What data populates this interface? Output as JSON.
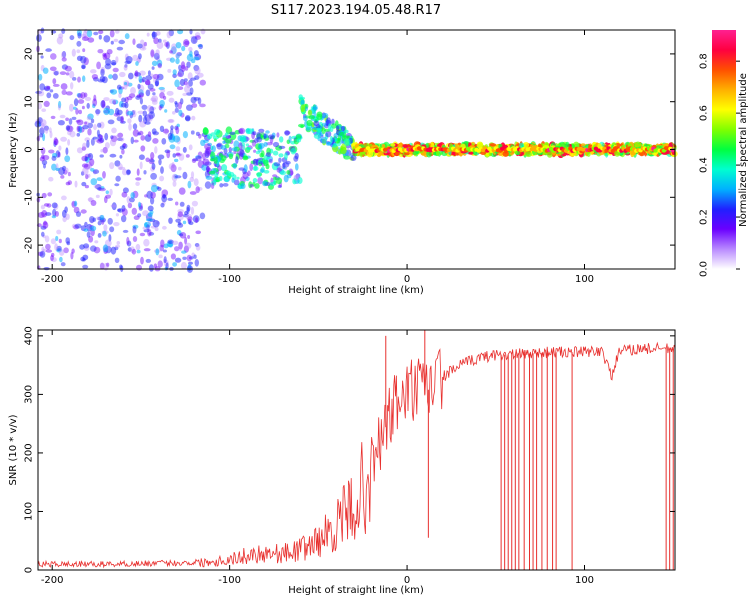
{
  "figure": {
    "title": "S117.2023.194.05.48.R17"
  },
  "chart_data": [
    {
      "type": "heatmap",
      "xlabel": "Height of straight line (km)",
      "ylabel": "Frequency (Hz)",
      "xlim": [
        -208,
        151
      ],
      "ylim": [
        -25,
        25
      ],
      "x_ticks": [
        -200,
        -100,
        0,
        100
      ],
      "x_tick_labels": [
        "-200",
        "-100",
        "0",
        "100"
      ],
      "y_ticks": [
        -20,
        -10,
        0,
        10,
        20
      ],
      "y_tick_labels": [
        "-20",
        "-10",
        "0",
        "10",
        "20"
      ],
      "colorbar": {
        "label": "Normalized spectral amplitude",
        "range": [
          0,
          0.92
        ],
        "ticks": [
          0,
          0.2,
          0.4,
          0.6,
          0.8
        ],
        "tick_labels": [
          "0.0",
          "0.2",
          "0.4",
          "0.6",
          "0.8"
        ],
        "colors": [
          "#ffffff",
          "#b98aff",
          "#6a00ff",
          "#2020ff",
          "#00b0ff",
          "#00ffd0",
          "#00ff40",
          "#80ff00",
          "#ffff00",
          "#ffb000",
          "#ff5000",
          "#ff0040",
          "#ff2090"
        ]
      },
      "regions": [
        {
          "x_range": [
            -208,
            -115
          ],
          "freq_range": [
            -25,
            25
          ],
          "amplitude": [
            0.05,
            0.3
          ],
          "description_code": "noise"
        },
        {
          "x_range": [
            -115,
            -60
          ],
          "freq_range": [
            -8,
            4
          ],
          "amplitude": [
            0.1,
            0.5
          ],
          "description_code": "scatter"
        },
        {
          "x_range": [
            -60,
            -30
          ],
          "freq_range": [
            0,
            10
          ],
          "amplitude": [
            0.2,
            0.55
          ],
          "description_code": "rising"
        },
        {
          "x_range": [
            -30,
            151
          ],
          "freq_range": [
            -1,
            1
          ],
          "amplitude": [
            0.4,
            0.85
          ],
          "description_code": "line"
        }
      ],
      "grid": false
    },
    {
      "type": "line",
      "xlabel": "Height of straight line (km)",
      "ylabel": "SNR (10 * v/v)",
      "xlim": [
        -208,
        151
      ],
      "ylim": [
        0,
        410
      ],
      "x_ticks": [
        -200,
        -100,
        0,
        100
      ],
      "x_tick_labels": [
        "-200",
        "-100",
        "0",
        "100"
      ],
      "y_ticks": [
        0,
        100,
        200,
        300,
        400
      ],
      "y_tick_labels": [
        "0",
        "100",
        "200",
        "300",
        "400"
      ],
      "color": "#e8302e",
      "series": [
        {
          "x": [
            -208,
            -190,
            -170,
            -150,
            -130,
            -115,
            -100,
            -90,
            -80,
            -70,
            -60,
            -50,
            -40,
            -30,
            -20,
            -15,
            -10,
            -5,
            0,
            5,
            10,
            15,
            20,
            30,
            40,
            50,
            60,
            70,
            80,
            90,
            100,
            110,
            115,
            120,
            125,
            130,
            140,
            151
          ],
          "values": [
            10,
            10,
            10,
            11,
            12,
            13,
            18,
            25,
            30,
            28,
            35,
            50,
            75,
            110,
            170,
            220,
            260,
            290,
            300,
            310,
            300,
            320,
            330,
            350,
            362,
            368,
            368,
            370,
            372,
            372,
            372,
            375,
            330,
            375,
            375,
            378,
            378,
            378
          ]
        }
      ],
      "dropouts_x": [
        53,
        55,
        57,
        59,
        61,
        63,
        66,
        69,
        71,
        73,
        76,
        79,
        82,
        84,
        93,
        146,
        148,
        150
      ],
      "spikes": [
        {
          "x": -12,
          "y": 400
        },
        {
          "x": 10,
          "y": 410
        },
        {
          "x": 12,
          "y": 55
        }
      ],
      "grid": false
    }
  ]
}
